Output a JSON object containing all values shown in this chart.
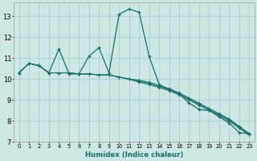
{
  "xlabel": "Humidex (Indice chaleur)",
  "background_color": "#cce8e5",
  "grid_color": "#aacfcc",
  "line_color": "#1a6e64",
  "xlim": [
    -0.5,
    23.5
  ],
  "ylim": [
    7.0,
    13.65
  ],
  "xtick_vals": [
    0,
    1,
    2,
    3,
    4,
    5,
    6,
    7,
    8,
    9,
    10,
    11,
    12,
    13,
    14,
    15,
    16,
    17,
    18,
    19,
    20,
    21,
    22,
    23
  ],
  "ytick_vals": [
    7,
    8,
    9,
    10,
    11,
    12,
    13
  ],
  "main_y": [
    10.3,
    10.75,
    10.65,
    10.3,
    11.45,
    10.25,
    10.25,
    11.1,
    11.5,
    10.3,
    13.1,
    13.35,
    13.2,
    11.1,
    9.75,
    9.5,
    9.3,
    8.85,
    8.55,
    8.5,
    8.2,
    7.9,
    7.45,
    7.38
  ],
  "line2_y": [
    10.3,
    10.75,
    10.65,
    10.3,
    10.3,
    10.3,
    10.25,
    10.25,
    10.2,
    10.2,
    10.1,
    10.0,
    9.95,
    9.85,
    9.7,
    9.55,
    9.35,
    9.1,
    8.85,
    8.6,
    8.35,
    8.1,
    7.75,
    7.4
  ],
  "line3_y": [
    10.3,
    10.75,
    10.65,
    10.3,
    10.3,
    10.3,
    10.25,
    10.25,
    10.2,
    10.2,
    10.1,
    10.0,
    9.9,
    9.8,
    9.65,
    9.5,
    9.3,
    9.05,
    8.8,
    8.55,
    8.3,
    8.05,
    7.7,
    7.37
  ],
  "line4_y": [
    10.3,
    10.75,
    10.65,
    10.3,
    10.3,
    10.3,
    10.25,
    10.25,
    10.2,
    10.2,
    10.1,
    10.0,
    9.85,
    9.75,
    9.6,
    9.45,
    9.25,
    9.0,
    8.75,
    8.5,
    8.25,
    8.0,
    7.65,
    7.34
  ]
}
